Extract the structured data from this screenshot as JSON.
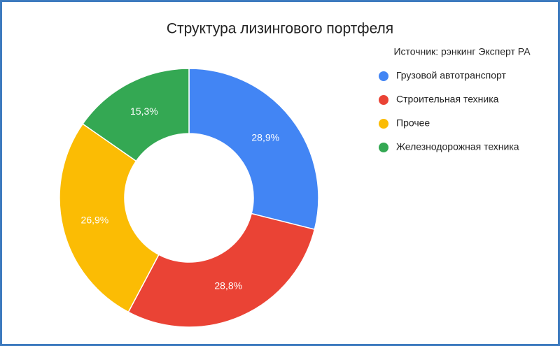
{
  "chart_data": {
    "type": "donut",
    "title": "Структура лизингового портфеля",
    "subtitle": "Источник: рэнкинг Эксперт РА",
    "categories": [
      "Грузовой автотранспорт",
      "Строительная техника",
      "Прочее",
      "Железнодорожная техника"
    ],
    "values": [
      28.9,
      28.8,
      26.9,
      15.3
    ],
    "value_labels": [
      "28,9%",
      "28,8%",
      "26,9%",
      "15,3%"
    ],
    "colors": [
      "#4285f4",
      "#ea4335",
      "#fbbc04",
      "#34a853"
    ],
    "legend": "right"
  }
}
